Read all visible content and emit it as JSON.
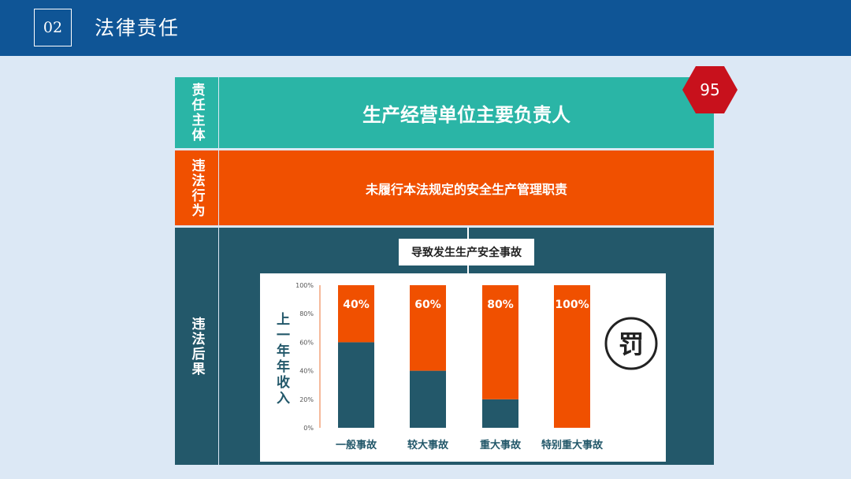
{
  "header": {
    "number": "02",
    "title": "法律责任"
  },
  "badge": {
    "value": "95"
  },
  "rows": {
    "subject": {
      "side_label": "责任主体",
      "text": "生产经营单位主要负责人",
      "color": "#2ab5a6"
    },
    "behavior": {
      "side_label": "违法行为",
      "text": "未履行本法规定的安全生产管理职责",
      "color": "#f05000"
    },
    "consequence": {
      "side_label": "违法后果",
      "label": "导致发生生产安全事故",
      "color": "#23586a"
    }
  },
  "penalty_icon": {
    "text": "罚",
    "name": "penalty-icon"
  },
  "chart_data": {
    "type": "bar",
    "stacked": true,
    "ylabel": "上一年年收入",
    "yticks": [
      "0%",
      "20%",
      "40%",
      "60%",
      "80%",
      "100%"
    ],
    "ylim": [
      0,
      100
    ],
    "categories": [
      "一般事故",
      "较大事故",
      "重大事故",
      "特别重大事故"
    ],
    "series": [
      {
        "values": [
          60,
          40,
          20,
          0
        ],
        "color": "#23586a"
      },
      {
        "values": [
          40,
          60,
          80,
          100
        ],
        "color": "#f05000"
      }
    ],
    "data_labels": [
      "40%",
      "60%",
      "80%",
      "100%"
    ]
  }
}
